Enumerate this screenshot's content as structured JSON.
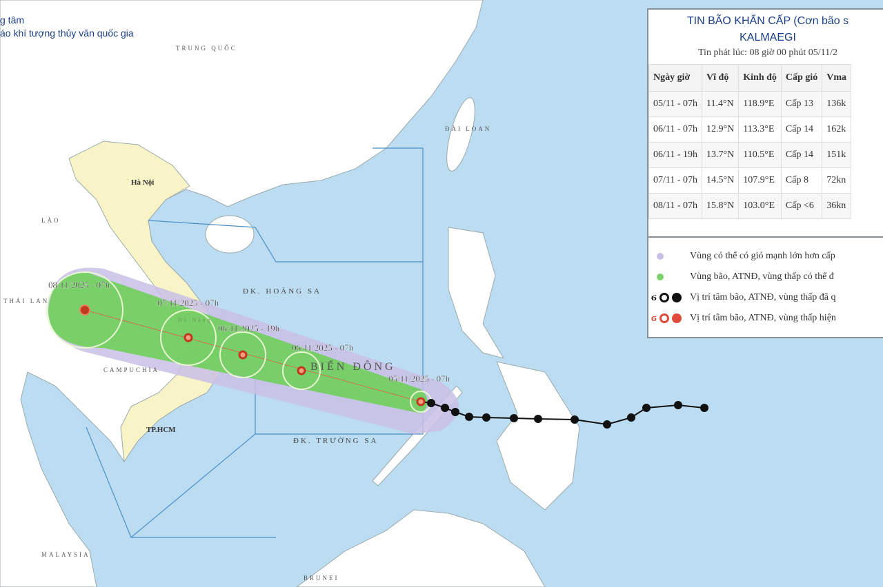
{
  "header": {
    "line1": "g tâm",
    "line2": "áo khí tượng thủy văn quốc gia"
  },
  "bulletin": {
    "title": "TIN BÃO KHẨN CẤP (Cơn bão s",
    "storm_name": "KALMAEGI",
    "issued": "Tin phát lúc: 08 giờ 00 phút 05/11/2",
    "columns": [
      "Ngày giờ",
      "Vĩ độ",
      "Kinh độ",
      "Cấp gió",
      "Vma"
    ],
    "rows": [
      [
        "05/11 - 07h",
        "11.4°N",
        "118.9°E",
        "Cấp 13",
        "136k"
      ],
      [
        "06/11 - 07h",
        "12.9°N",
        "113.3°E",
        "Cấp 14",
        "162k"
      ],
      [
        "06/11 - 19h",
        "13.7°N",
        "110.5°E",
        "Cấp 14",
        "151k"
      ],
      [
        "07/11 - 07h",
        "14.5°N",
        "107.9°E",
        "Cấp 8",
        "72kn"
      ],
      [
        "08/11 - 07h",
        "15.8°N",
        "103.0°E",
        "Cấp <6",
        "36kn"
      ]
    ]
  },
  "legend": {
    "items": [
      {
        "label": "Vùng có thể có gió mạnh lớn hơn cấp",
        "color": "#c9bfe6"
      },
      {
        "label": "Vùng bão, ATNĐ, vùng thấp có thể đ",
        "color": "#7bd36b"
      },
      {
        "label": "Vị trí tâm bão, ATNĐ, vùng thấp đã q",
        "color": "#111111"
      },
      {
        "label": "Vị trí tâm bão, ATNĐ, vùng thấp hiện",
        "color": "#e04a3a"
      }
    ]
  },
  "map": {
    "labels": {
      "china": "TRUNG QUỐC",
      "taiwan": "ĐÀI LOAN",
      "hanoi": "Hà Nội",
      "laos": "LÀO",
      "thailand": "THÁI LAN",
      "cambodia": "CAMPUCHIA",
      "hcm": "TP.HCM",
      "malaysia": "MALAYSIA",
      "brunei": "BRUNEI",
      "hoangsa": "ĐK. HOÀNG SA",
      "truongsa": "ĐK. TRƯỜNG SA",
      "biendong": "BIỂN ĐÔNG",
      "danang": "Đà Nẵng"
    },
    "forecast_points": [
      {
        "label": "05/11/2025 - 07h"
      },
      {
        "label": "06/11/2025 - 07h"
      },
      {
        "label": "06/11/2025 - 19h"
      },
      {
        "label": "07/11/2025 - 07h"
      },
      {
        "label": "08/11/2025 - 07h"
      }
    ],
    "colors": {
      "sea": "#bcdcf2",
      "land": "#ffffff",
      "vietnam": "#f8f4c8",
      "wind_zone": "#c9bfe6",
      "storm_zone": "#6fcf5a",
      "track_past": "#111111",
      "current": "#e04a3a"
    }
  }
}
